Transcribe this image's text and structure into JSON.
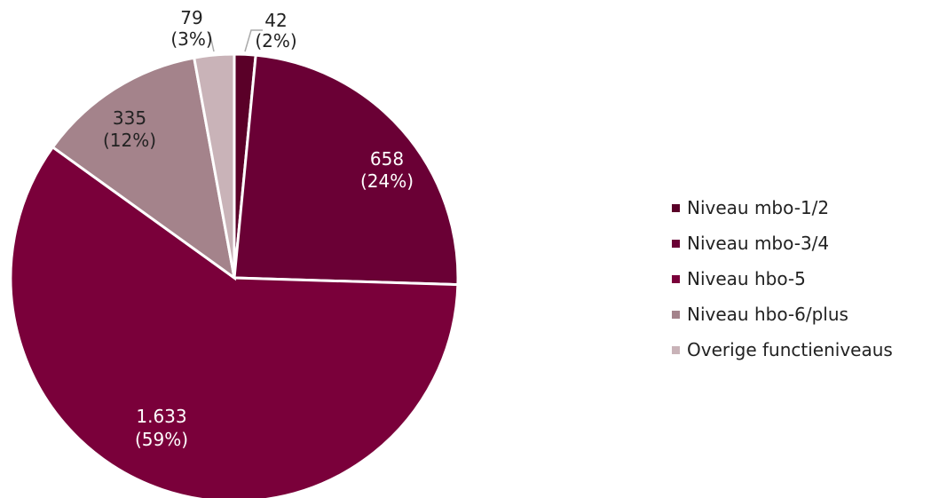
{
  "chart_data": {
    "type": "pie",
    "slices": [
      {
        "name": "Niveau mbo-1/2",
        "value": 42,
        "pct_label": "(2%)",
        "value_label": "42",
        "color": "#5a0028"
      },
      {
        "name": "Niveau mbo-3/4",
        "value": 658,
        "pct_label": "(24%)",
        "value_label": "658",
        "color": "#6a0035"
      },
      {
        "name": "Niveau hbo-5",
        "value": 1633,
        "pct_label": "(59%)",
        "value_label": "1.633",
        "color": "#7a003a"
      },
      {
        "name": "Niveau hbo-6/plus",
        "value": 335,
        "pct_label": "(12%)",
        "value_label": "335",
        "color": "#a4838b"
      },
      {
        "name": "Overige functieniveaus",
        "value": 79,
        "pct_label": "(3%)",
        "value_label": "79",
        "color": "#c9b3b8"
      }
    ],
    "legend_position": "right"
  }
}
